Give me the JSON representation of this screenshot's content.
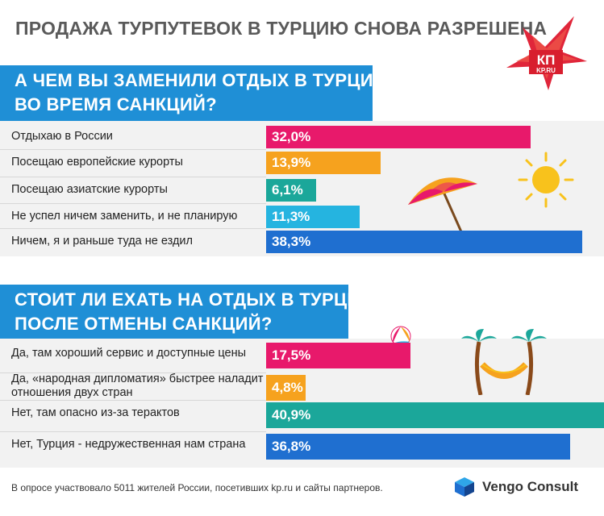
{
  "title": "ПРОДАЖА ТУРПУТЕВОК В ТУРЦИЮ СНОВА РАЗРЕШЕНА",
  "logo": {
    "text": "КП",
    "sub": "KP.RU",
    "color": "#e03030"
  },
  "colors": {
    "pink": "#e8196b",
    "orange": "#f6a21e",
    "teal": "#1ba79a",
    "cyan": "#25b4e0",
    "blue": "#1f6fd0",
    "question_bg": "#1f8fd6"
  },
  "chart_data": [
    {
      "type": "bar",
      "title": "А ЧЕМ ВЫ ЗАМЕНИЛИ ОТДЫХ В ТУРЦИИ ВО ВРЕМЯ САНКЦИЙ?",
      "title_lines": [
        "А ЧЕМ ВЫ ЗАМЕНИЛИ ОТДЫХ В ТУРЦИИ",
        "ВО ВРЕМЯ САНКЦИЙ?"
      ],
      "categories": [
        "Отдыхаю в России",
        "Посещаю европейские курорты",
        "Посещаю азиатские курорты",
        "Не успел ничем заменить, и не планирую",
        "Ничем, я и раньше туда не ездил"
      ],
      "values": [
        32.0,
        13.9,
        6.1,
        11.3,
        38.3
      ],
      "value_labels": [
        "32,0%",
        "13,9%",
        "6,1%",
        "11,3%",
        "38,3%"
      ],
      "bar_colors": [
        "#e8196b",
        "#f6a21e",
        "#1ba79a",
        "#25b4e0",
        "#1f6fd0"
      ]
    },
    {
      "type": "bar",
      "title": "СТОИТ ЛИ ЕХАТЬ НА ОТДЫХ В ТУРЦИЮ ПОСЛЕ ОТМЕНЫ САНКЦИЙ?",
      "title_lines": [
        "СТОИТ ЛИ ЕХАТЬ НА ОТДЫХ В ТУРЦИЮ",
        "ПОСЛЕ ОТМЕНЫ САНКЦИЙ?"
      ],
      "categories": [
        "Да, там хороший сервис и доступные цены",
        "Да, «народная дипломатия» быстрее наладит отношения двух стран",
        "Нет, там опасно из-за терактов",
        "Нет, Турция - недружественная нам страна"
      ],
      "category_lines": [
        [
          "Да, там хороший сервис и доступные цены"
        ],
        [
          "Да, «народная дипломатия» быстрее наладит",
          "отношения двух стран"
        ],
        [
          "Нет, там опасно из-за терактов"
        ],
        [
          "Нет, Турция - недружественная нам страна"
        ]
      ],
      "values": [
        17.5,
        4.8,
        40.9,
        36.8
      ],
      "value_labels": [
        "17,5%",
        "4,8%",
        "40,9%",
        "36,8%"
      ],
      "bar_colors": [
        "#e8196b",
        "#f6a21e",
        "#1ba79a",
        "#1f6fd0"
      ]
    }
  ],
  "footnote": "В опросе участвовало 5011 жителей России, посетивших kp.ru и сайты партнеров.",
  "brand": "Vengo Consult",
  "icons": [
    "beach-umbrella-icon",
    "sun-icon",
    "beach-ball-icon",
    "palm-hammock-icon",
    "vengo-cube-icon",
    "kp-star-logo"
  ]
}
